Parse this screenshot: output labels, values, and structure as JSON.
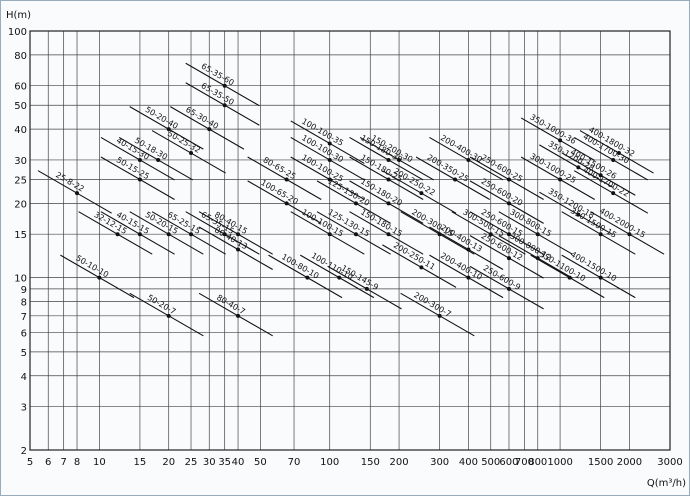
{
  "chart_data": {
    "type": "scatter",
    "y_label": "H(m)",
    "x_label": "Q(m³/h)",
    "log_x": true,
    "log_y": true,
    "grid": true,
    "color": "#111",
    "xlim": [
      5,
      3000
    ],
    "ylim": [
      2,
      100
    ],
    "xticks": [
      5,
      6,
      7,
      8,
      10,
      15,
      20,
      25,
      30,
      35,
      40,
      50,
      70,
      100,
      150,
      200,
      300,
      400,
      500,
      600,
      700,
      800,
      1000,
      1500,
      2000,
      3000
    ],
    "yticks": [
      2,
      3,
      4,
      5,
      6,
      7,
      8,
      9,
      10,
      15,
      20,
      25,
      30,
      40,
      50,
      60,
      80,
      100
    ],
    "point_labels": [
      "25-8-22",
      "32-12-15",
      "50-10-10",
      "40-15-15",
      "50-15-25",
      "40-15-30",
      "50-18-30",
      "50-20-40",
      "50-20-15",
      "65-25-15",
      "50-20-7",
      "50-25-32",
      "65-30-40",
      "65-35-50",
      "65-35-60",
      "80-40-15",
      "65-35-15",
      "80-40-13",
      "80-40-7",
      "80-65-25",
      "100-65-20",
      "100-100-35",
      "100-100-30",
      "100-100-25",
      "100-100-15",
      "100-80-10",
      "100-110-10",
      "125-130-20",
      "125-130-15",
      "150-145-9",
      "150-180-30",
      "150-180-25",
      "150-180-20",
      "150-180-15",
      "150-200-30",
      "200-250-22",
      "200-300-15",
      "200-250-11",
      "200-300-7",
      "200-400-30",
      "200-350-25",
      "200-400-13",
      "200-400-10",
      "250-600-25",
      "250-600-20",
      "250-600-15",
      "300-500-15",
      "250-600-12",
      "250-600-9",
      "300-800-15",
      "300-800-12",
      "350-1000-36",
      "350-1200-28",
      "300-1000-25",
      "350-1200-18",
      "350-1100-10",
      "400-1800-32",
      "400-1700-30",
      "400-1500-26",
      "400-1700-22",
      "400-2000-15",
      "350-1500-15",
      "400-1500-10"
    ],
    "x": [
      8,
      12,
      10,
      15,
      15,
      15,
      18,
      20,
      20,
      25,
      20,
      25,
      30,
      35,
      35,
      40,
      35,
      40,
      40,
      65,
      65,
      100,
      100,
      100,
      100,
      80,
      110,
      130,
      130,
      145,
      180,
      180,
      180,
      180,
      200,
      250,
      300,
      250,
      300,
      400,
      350,
      400,
      400,
      600,
      600,
      600,
      500,
      600,
      600,
      800,
      800,
      1000,
      1200,
      1000,
      1200,
      1100,
      1800,
      1700,
      1500,
      1700,
      2000,
      1500,
      1500
    ],
    "values": [
      22,
      15,
      10,
      15,
      25,
      30,
      30,
      40,
      15,
      15,
      7,
      32,
      40,
      50,
      60,
      15,
      15,
      13,
      7,
      25,
      20,
      35,
      30,
      25,
      15,
      10,
      10,
      20,
      15,
      9,
      30,
      25,
      20,
      15,
      30,
      22,
      15,
      11,
      7,
      30,
      25,
      13,
      10,
      25,
      20,
      15,
      15,
      12,
      9,
      15,
      12,
      36,
      28,
      25,
      18,
      10,
      32,
      30,
      26,
      22,
      15,
      15,
      10
    ]
  }
}
